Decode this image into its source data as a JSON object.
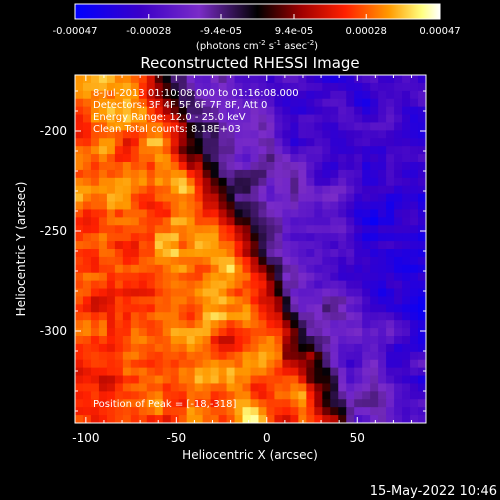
{
  "chart_data": {
    "type": "heatmap",
    "title": "Reconstructed RHESSI Image",
    "xlabel": "Heliocentric X (arcsec)",
    "ylabel": "Heliocentric Y (arcsec)",
    "xlim": [
      -106,
      88
    ],
    "ylim": [
      -346,
      -172
    ],
    "xticks": [
      -100,
      -50,
      0,
      50
    ],
    "yticks": [
      -200,
      -250,
      -300
    ],
    "xtick_labels": [
      "-100",
      "-50",
      "0",
      "50"
    ],
    "ytick_labels": [
      "-200",
      "-250",
      "-300"
    ],
    "colorbar": {
      "min": -0.00047,
      "max": 0.00047,
      "ticks": [
        -0.00047,
        -0.00028,
        -9.4e-05,
        9.4e-05,
        0.00028,
        0.00047
      ],
      "tick_labels": [
        "-0.00047",
        "-0.00028",
        "-9.4e-05",
        "9.4e-05",
        "0.00028",
        "0.00047"
      ],
      "unit_text": "(photons cm",
      "unit_sup1": "-2",
      "unit_mid": " s",
      "unit_sup2": "-1",
      "unit_tail": " asec",
      "unit_sup3": "-2",
      "unit_close": ")",
      "colors": [
        "#0000ff",
        "#4400aa",
        "#7a2cc8",
        "#000000",
        "#a00000",
        "#ff3000",
        "#ffa000",
        "#ffffd0",
        "#ffffff"
      ]
    },
    "annotations": {
      "time_range": "8-Jul-2013 01:10:08.000 to 01:16:08.000",
      "detectors": "Detectors: 3F 4F 5F 6F 7F 8F, Att 0",
      "energy": "Energy Range: 12.0 - 25.0 keV",
      "clean": "Clean     Total counts: 8.18E+03",
      "peak": "Position of Peak = [-18,-318]"
    },
    "peak": {
      "x": -18,
      "y": -318
    },
    "grid": false
  },
  "footer": {
    "date": "15-May-2022 10:46"
  }
}
